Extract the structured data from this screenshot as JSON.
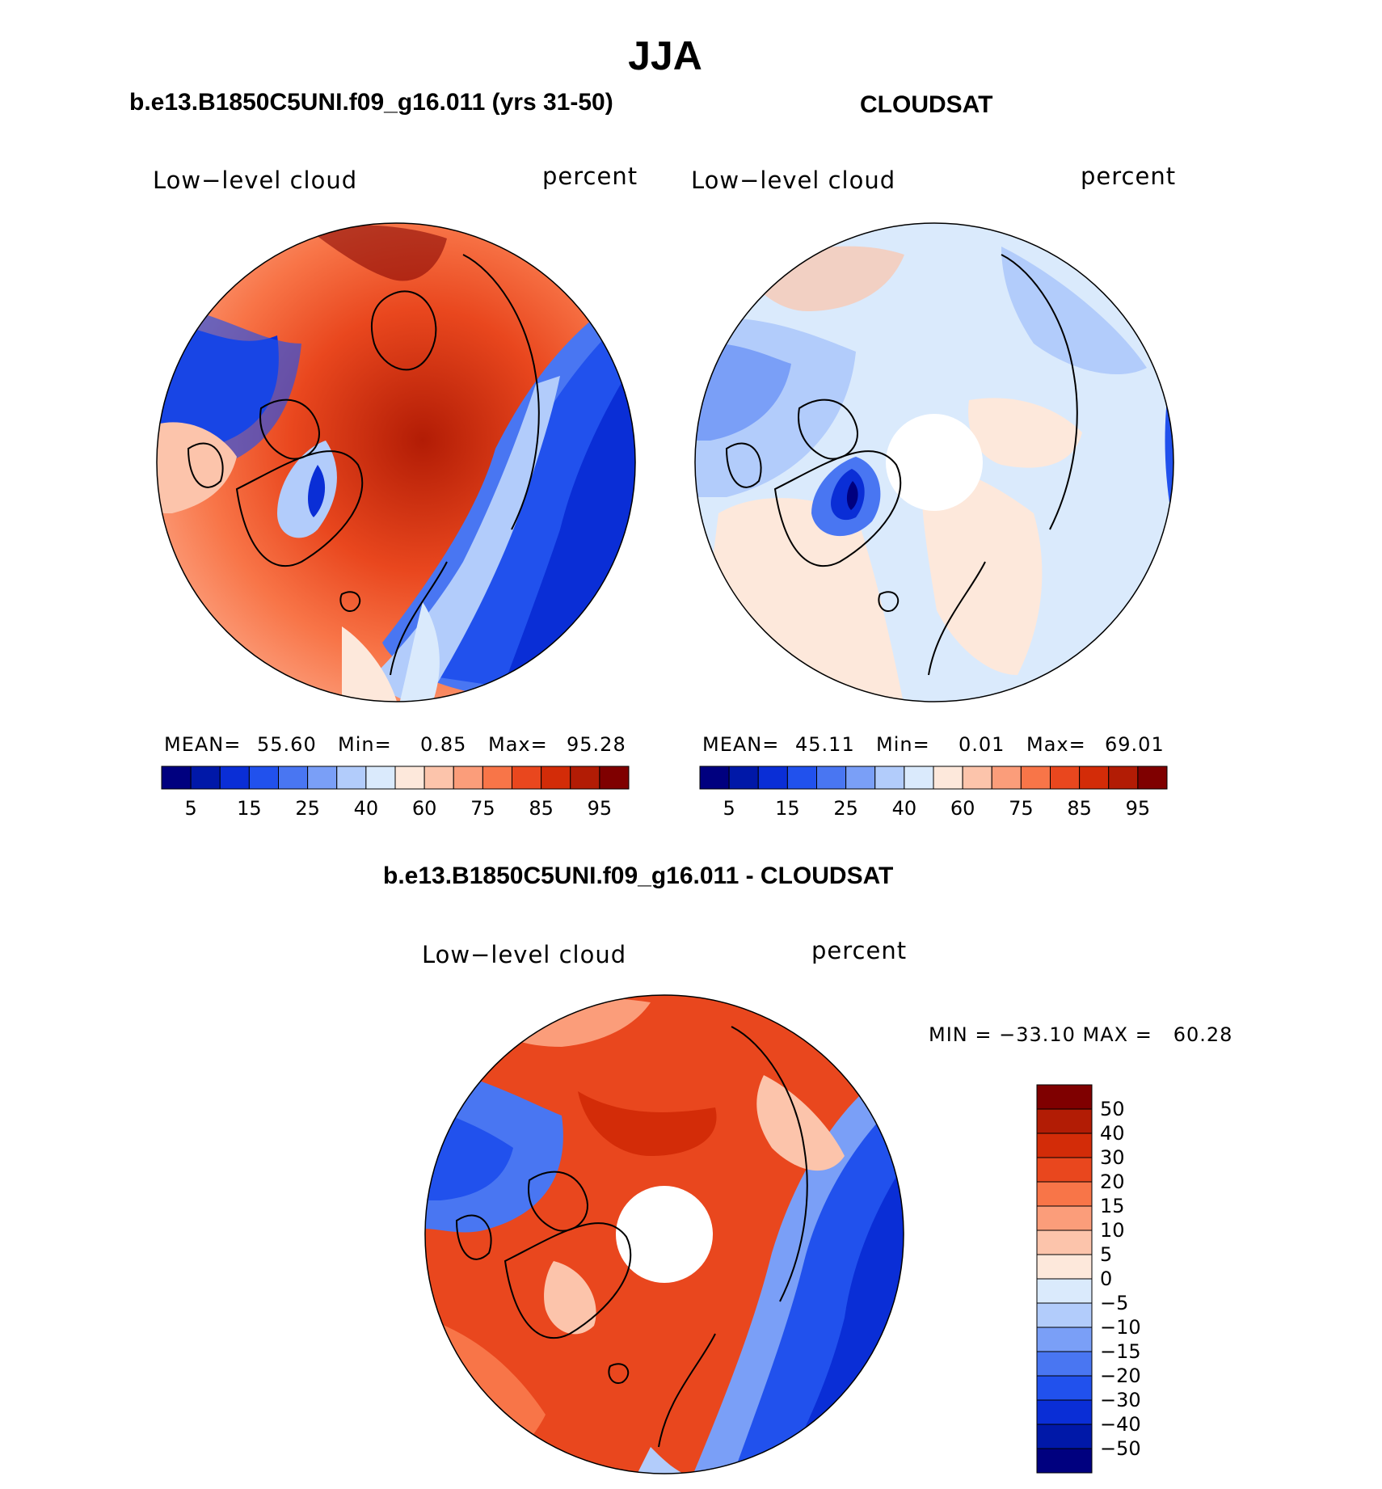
{
  "figure": {
    "season": "JJA",
    "panel1_title": "b.e13.B1850C5UNI.f09_g16.011 (yrs 31-50)",
    "panel2_title": "CLOUDSAT",
    "diff_title": "b.e13.B1850C5UNI.f09_g16.011 - CLOUDSAT"
  },
  "panels": [
    {
      "variable": "Low−level cloud",
      "units": "percent",
      "stats": {
        "mean_label": "MEAN=",
        "mean": "55.60",
        "min_label": "Min=",
        "min": "0.85",
        "max_label": "Max=",
        "max": "95.28"
      }
    },
    {
      "variable": "Low−level cloud",
      "units": "percent",
      "stats": {
        "mean_label": "MEAN=",
        "mean": "45.11",
        "min_label": "Min=",
        "min": "0.01",
        "max_label": "Max=",
        "max": "69.01"
      }
    },
    {
      "variable": "Low−level cloud",
      "units": "percent",
      "stats_text": "MIN = −33.10 MAX =   60.28"
    }
  ],
  "colorbar_abs": {
    "colors": [
      "#00007f",
      "#0018a8",
      "#0a2ed6",
      "#2151ed",
      "#4976f2",
      "#7a9ff7",
      "#b2ccfb",
      "#daeafc",
      "#fde8db",
      "#fcc4ab",
      "#fb9d7a",
      "#f87548",
      "#e9471e",
      "#d32c08",
      "#b21c05",
      "#7f0000"
    ],
    "tick_labels": [
      "5",
      "15",
      "25",
      "40",
      "60",
      "75",
      "85",
      "95"
    ]
  },
  "colorbar_diff": {
    "colors": [
      "#00007f",
      "#0018a8",
      "#0a2ed6",
      "#2151ed",
      "#4976f2",
      "#7a9ff7",
      "#b2ccfb",
      "#daeafc",
      "#fde8db",
      "#fcc4ab",
      "#fb9d7a",
      "#f87548",
      "#e9471e",
      "#d32c08",
      "#b21c05",
      "#7f0000"
    ],
    "tick_labels": [
      "50",
      "40",
      "30",
      "20",
      "15",
      "10",
      "5",
      "0",
      "−5",
      "−10",
      "−15",
      "−20",
      "−30",
      "−40",
      "−50"
    ]
  }
}
